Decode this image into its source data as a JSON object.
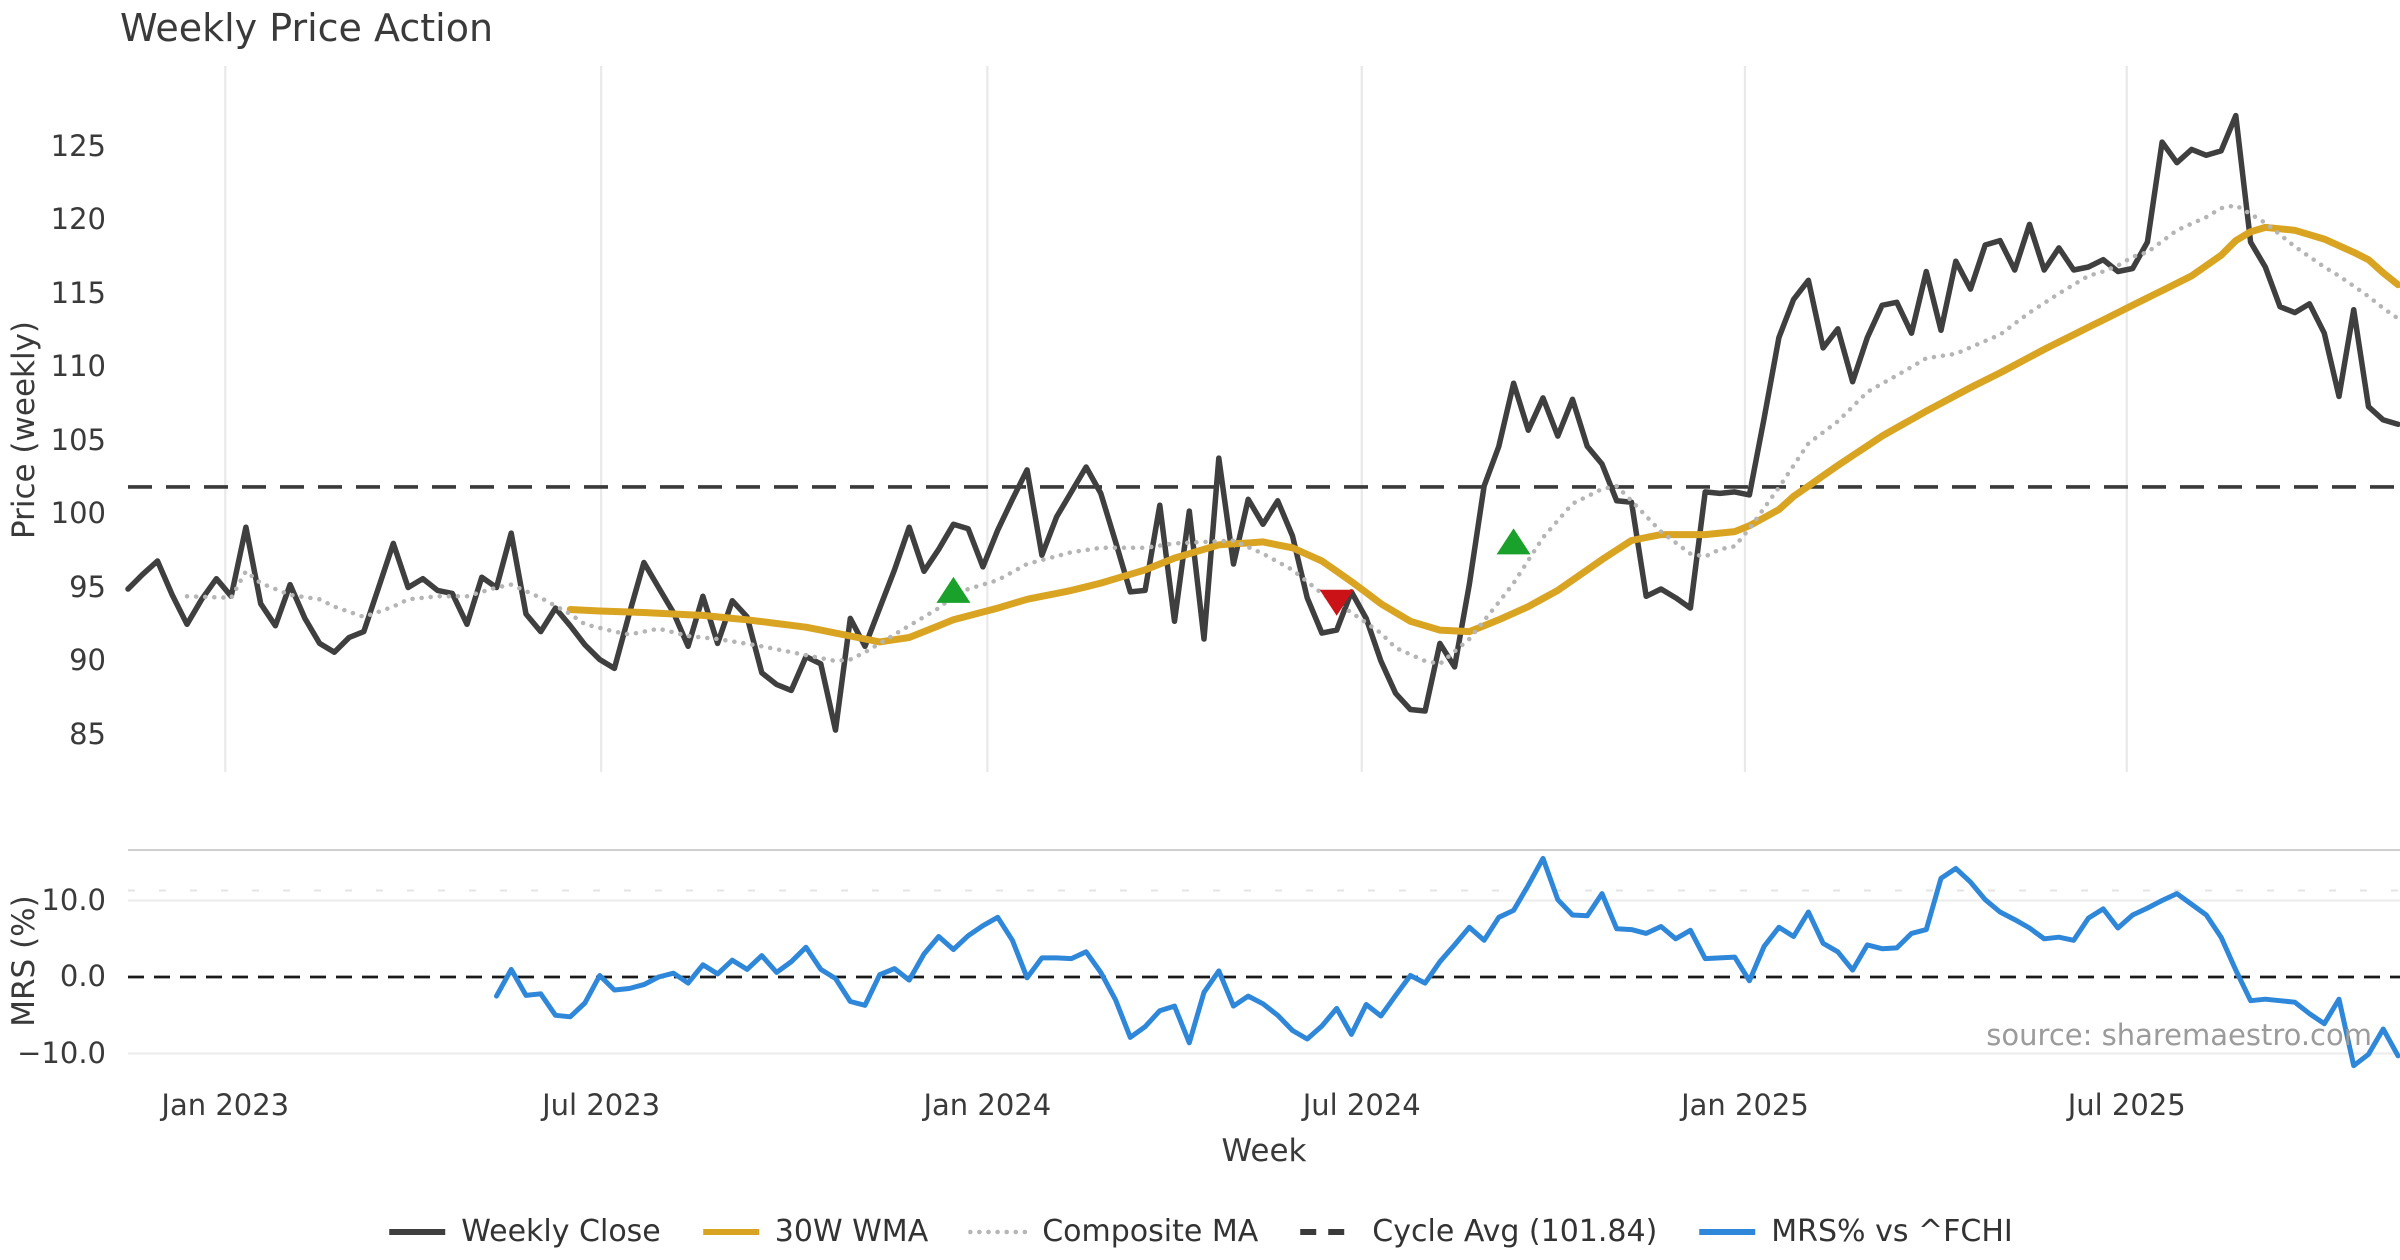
{
  "title": "Weekly Price Action",
  "source": "source: sharemaestro.com",
  "axes": {
    "price_label": "Price (weekly)",
    "mrs_label": "MRS (%)",
    "x_label": "Week"
  },
  "legend": {
    "items": [
      {
        "label": "Weekly Close",
        "color": "#3f3f3f",
        "style": "solid"
      },
      {
        "label": "30W WMA",
        "color": "#d9a421",
        "style": "solid"
      },
      {
        "label": "Composite MA",
        "color": "#b5b5b5",
        "style": "dotted"
      },
      {
        "label": "Cycle Avg (101.84)",
        "color": "#3a3a3a",
        "style": "dashed"
      },
      {
        "label": "MRS% vs ^FCHI",
        "color": "#2e87d8",
        "style": "solid"
      }
    ]
  },
  "chart_data": {
    "type": "line",
    "title": "Weekly Price Action",
    "grid": "vertical-on-price-panel, horizontal-on-mrs-panel",
    "x_axis": {
      "label": "Week",
      "ticks": [
        {
          "label": "Jan 2023",
          "week": 6.6
        },
        {
          "label": "Jul 2023",
          "week": 32.1
        },
        {
          "label": "Jan 2024",
          "week": 58.3
        },
        {
          "label": "Jul 2024",
          "week": 83.7
        },
        {
          "label": "Jan 2025",
          "week": 109.7
        },
        {
          "label": "Jul 2025",
          "week": 135.6
        }
      ]
    },
    "price_axis": {
      "label": "Price (weekly)",
      "ticks": [
        85,
        90,
        95,
        100,
        105,
        110,
        115,
        120,
        125
      ],
      "range": [
        82.4,
        130.3
      ]
    },
    "mrs_axis": {
      "label": "MRS (%)",
      "ticks": [
        {
          "value": 10,
          "label": "10.0"
        },
        {
          "value": 0,
          "label": "0.0"
        },
        {
          "value": -10,
          "label": "−10.0"
        }
      ],
      "range": [
        -13.5,
        16.6
      ]
    },
    "cycle_avg": 101.84,
    "series": [
      {
        "name": "Weekly Close",
        "panel": "price",
        "color": "#3f3f3f",
        "style": "solid",
        "width": 5.5,
        "start_week": 0,
        "values": [
          94.9,
          95.9,
          96.8,
          94.5,
          92.5,
          94.2,
          95.6,
          94.4,
          99.1,
          93.9,
          92.4,
          95.2,
          92.9,
          91.2,
          90.6,
          91.6,
          92.0,
          95.0,
          98.0,
          95.0,
          95.6,
          94.8,
          94.6,
          92.5,
          95.7,
          95.0,
          98.7,
          93.2,
          92.0,
          93.6,
          92.4,
          91.1,
          90.1,
          89.5,
          93.2,
          96.7,
          95.0,
          93.3,
          91.0,
          94.4,
          91.2,
          94.1,
          93.0,
          89.2,
          88.4,
          88.0,
          90.3,
          89.8,
          85.3,
          92.9,
          91.0,
          93.6,
          96.2,
          99.1,
          96.1,
          97.6,
          99.3,
          99.0,
          96.4,
          98.9,
          101.0,
          103.0,
          97.2,
          99.8,
          101.5,
          103.2,
          101.4,
          98.1,
          94.7,
          94.8,
          100.6,
          92.7,
          100.2,
          91.5,
          103.8,
          96.6,
          101.0,
          99.3,
          100.9,
          98.5,
          94.3,
          91.9,
          92.1,
          94.7,
          92.9,
          90.0,
          87.8,
          86.7,
          86.6,
          91.2,
          89.6,
          95.2,
          101.9,
          104.6,
          108.9,
          105.7,
          107.9,
          105.3,
          107.8,
          104.6,
          103.4,
          100.9,
          100.8,
          94.4,
          94.9,
          94.3,
          93.6,
          101.5,
          101.4,
          101.5,
          101.3,
          106.5,
          112.0,
          114.6,
          115.9,
          111.3,
          112.6,
          109.0,
          112.0,
          114.2,
          114.4,
          112.3,
          116.5,
          112.5,
          117.2,
          115.3,
          118.3,
          118.6,
          116.6,
          119.7,
          116.6,
          118.1,
          116.6,
          116.8,
          117.3,
          116.5,
          116.7,
          118.5,
          125.3,
          123.9,
          124.8,
          124.4,
          124.7,
          127.1,
          118.5,
          116.8,
          114.1,
          113.7,
          114.3,
          112.3,
          108.0,
          113.9,
          107.3,
          106.4,
          106.1
        ]
      },
      {
        "name": "30W WMA",
        "panel": "price",
        "color": "#d9a421",
        "style": "solid",
        "width": 7,
        "start_week": 30,
        "values": [
          93.5,
          93.45,
          93.4,
          93.37,
          93.33,
          93.3,
          93.25,
          93.2,
          93.15,
          93.1,
          93.0,
          92.9,
          92.8,
          92.68,
          92.55,
          92.43,
          92.3,
          92.1,
          91.9,
          91.7,
          91.5,
          91.3,
          91.45,
          91.6,
          92.0,
          92.4,
          92.8,
          93.07,
          93.33,
          93.6,
          93.9,
          94.2,
          94.4,
          94.6,
          94.8,
          95.05,
          95.3,
          95.6,
          95.9,
          96.2,
          96.6,
          97.0,
          97.3,
          97.6,
          97.9,
          97.97,
          98.03,
          98.1,
          97.9,
          97.7,
          97.25,
          96.8,
          96.1,
          95.4,
          94.65,
          93.9,
          93.3,
          92.7,
          92.4,
          92.1,
          92.05,
          92.0,
          92.4,
          92.8,
          93.25,
          93.7,
          94.25,
          94.8,
          95.5,
          96.2,
          96.9,
          97.55,
          98.2,
          98.4,
          98.6,
          98.6,
          98.6,
          98.6,
          98.7,
          98.8,
          99.2,
          99.75,
          100.3,
          101.2,
          101.9,
          102.6,
          103.3,
          103.97,
          104.63,
          105.3,
          105.87,
          106.43,
          107.0,
          107.53,
          108.07,
          108.6,
          109.1,
          109.6,
          110.13,
          110.67,
          111.2,
          111.7,
          112.2,
          112.7,
          113.2,
          113.7,
          114.2,
          114.7,
          115.2,
          115.7,
          116.2,
          116.9,
          117.6,
          118.6,
          119.2,
          119.5,
          119.4,
          119.3,
          119.0,
          118.7,
          118.25,
          117.8,
          117.3,
          116.4,
          115.6
        ]
      },
      {
        "name": "Composite MA",
        "panel": "price",
        "color": "#b5b5b5",
        "style": "dotted",
        "width": 4.5,
        "start_week": 4,
        "values": [
          94.4,
          94.37,
          94.33,
          94.3,
          96.1,
          95.3,
          94.9,
          94.5,
          94.35,
          94.2,
          93.7,
          93.35,
          93.0,
          93.35,
          93.7,
          94.2,
          94.3,
          94.4,
          94.4,
          94.4,
          94.7,
          95.0,
          95.2,
          94.75,
          94.3,
          93.75,
          93.2,
          92.5,
          92.25,
          92.0,
          91.8,
          92.0,
          92.2,
          91.95,
          91.7,
          91.6,
          91.5,
          91.33,
          91.17,
          91.0,
          90.8,
          90.6,
          90.4,
          90.2,
          90.0,
          90.1,
          90.6,
          91.2,
          91.8,
          92.4,
          93.0,
          93.6,
          94.4,
          94.9,
          95.2,
          95.5,
          96.05,
          96.6,
          96.87,
          97.13,
          97.4,
          97.55,
          97.7,
          97.7,
          97.7,
          97.7,
          97.85,
          98.0,
          98.05,
          98.1,
          98.15,
          98.2,
          97.75,
          97.3,
          96.75,
          96.2,
          95.4,
          94.6,
          93.95,
          93.3,
          92.6,
          91.9,
          90.9,
          90.45,
          90.0,
          89.8,
          90.65,
          91.5,
          92.75,
          94.0,
          95.3,
          96.85,
          98.4,
          99.55,
          100.7,
          101.2,
          101.7,
          101.9,
          100.9,
          99.85,
          98.8,
          98.05,
          97.3,
          97.1,
          97.6,
          97.8,
          99.0,
          100.4,
          101.8,
          103.3,
          104.8,
          105.55,
          106.3,
          107.3,
          108.3,
          108.87,
          109.43,
          110.0,
          110.6,
          110.75,
          110.9,
          111.33,
          111.77,
          112.2,
          112.95,
          113.7,
          114.35,
          115.0,
          115.6,
          116.2,
          116.5,
          116.9,
          117.5,
          117.8,
          118.55,
          119.3,
          119.75,
          120.2,
          120.8,
          121.0,
          120.4,
          119.8,
          119.0,
          118.2,
          117.5,
          116.8,
          116.2,
          115.5,
          114.8,
          114.0,
          113.3
        ]
      },
      {
        "name": "MRS% vs ^FCHI",
        "panel": "mrs",
        "color": "#2e87d8",
        "style": "solid",
        "width": 5,
        "start_week": 25,
        "values": [
          -2.5,
          1.0,
          -2.4,
          -2.2,
          -5.0,
          -5.2,
          -3.4,
          0.2,
          -1.7,
          -1.5,
          -1.0,
          0.0,
          0.5,
          -0.8,
          1.6,
          0.4,
          2.2,
          1.0,
          2.8,
          0.6,
          2.0,
          3.9,
          1.0,
          -0.2,
          -3.2,
          -3.7,
          0.3,
          1.1,
          -0.4,
          3.0,
          5.3,
          3.6,
          5.4,
          6.7,
          7.8,
          4.8,
          -0.1,
          2.5,
          2.5,
          2.4,
          3.3,
          0.6,
          -3.0,
          -7.9,
          -6.5,
          -4.4,
          -3.8,
          -8.6,
          -2.0,
          0.8,
          -3.8,
          -2.5,
          -3.5,
          -5.0,
          -7.0,
          -8.1,
          -6.4,
          -4.1,
          -7.5,
          -3.6,
          -5.1,
          -2.4,
          0.2,
          -0.8,
          2.0,
          4.2,
          6.5,
          4.8,
          7.8,
          8.7,
          12.0,
          15.5,
          10.1,
          8.1,
          8.0,
          10.9,
          6.3,
          6.2,
          5.7,
          6.6,
          5.0,
          6.1,
          2.4,
          2.5,
          2.6,
          -0.5,
          4.0,
          6.5,
          5.3,
          8.5,
          4.4,
          3.3,
          0.9,
          4.2,
          3.7,
          3.8,
          5.7,
          6.2,
          12.9,
          14.2,
          12.4,
          10.1,
          8.5,
          7.5,
          6.4,
          5.0,
          5.2,
          4.8,
          7.7,
          8.9,
          6.4,
          8.1,
          9.0,
          10.0,
          10.9,
          9.5,
          8.1,
          5.2,
          0.9,
          -3.1,
          -2.9,
          -3.1,
          -3.3,
          -4.8,
          -6.1,
          -2.9,
          -11.6,
          -10.1,
          -6.8,
          -10.3
        ]
      }
    ],
    "markers": [
      {
        "week": 56,
        "value": 94.7,
        "direction": "up",
        "color": "#19a12b"
      },
      {
        "week": 82,
        "value": 94.1,
        "direction": "down",
        "color": "#cb1216"
      },
      {
        "week": 94,
        "value": 98.0,
        "direction": "up",
        "color": "#19a12b"
      }
    ]
  },
  "style_colors": {
    "background": "#ffffff",
    "grid": "#e9e9e9",
    "mrs_grid": "#ededed",
    "mrs_top_spine": "#cfcfcf",
    "zero_line": "#1a1a1a",
    "tick_text": "#3a3a3a",
    "source_text": "#9b9b9b"
  }
}
